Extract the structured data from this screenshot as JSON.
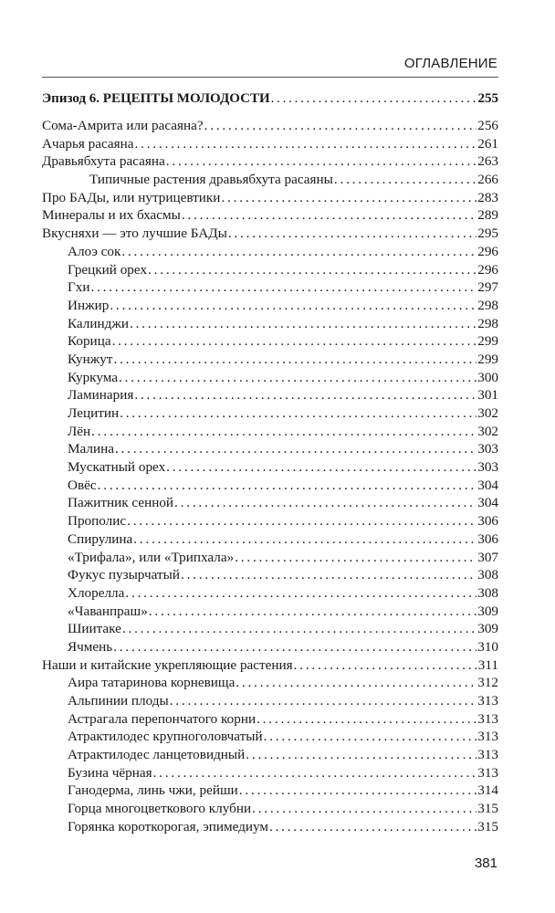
{
  "header": "ОГЛАВЛЕНИЕ",
  "folio": "381",
  "entries": [
    {
      "title": "Эпизод 6. РЕЦЕПТЫ МОЛОДОСТИ",
      "page": "255",
      "level": 0,
      "bold": true
    },
    {
      "title": "Сома-Амрита или расаяна?",
      "page": "256",
      "level": 0
    },
    {
      "title": "Ачарья расаяна",
      "page": "261",
      "level": 0
    },
    {
      "title": "Дравьябхута расаяна",
      "page": "263",
      "level": 0
    },
    {
      "title": "Типичные растения дравьябхута расаяны",
      "page": "266",
      "level": 2
    },
    {
      "title": "Про БАДы, или нутрицевтики",
      "page": "283",
      "level": 0
    },
    {
      "title": "Минералы и их бхасмы",
      "page": "289",
      "level": 0
    },
    {
      "title": "Вкусняхи — это лучшие БАДы",
      "page": "295",
      "level": 0
    },
    {
      "title": "Алоэ сок",
      "page": "296",
      "level": 1
    },
    {
      "title": "Грецкий орех",
      "page": "296",
      "level": 1
    },
    {
      "title": "Гхи",
      "page": "297",
      "level": 1
    },
    {
      "title": "Инжир",
      "page": "298",
      "level": 1
    },
    {
      "title": "Калинджи",
      "page": "298",
      "level": 1
    },
    {
      "title": "Корица",
      "page": "299",
      "level": 1
    },
    {
      "title": "Кунжут",
      "page": "299",
      "level": 1
    },
    {
      "title": "Куркума",
      "page": "300",
      "level": 1
    },
    {
      "title": "Ламинария",
      "page": "301",
      "level": 1
    },
    {
      "title": "Лецитин",
      "page": "302",
      "level": 1
    },
    {
      "title": "Лён",
      "page": "302",
      "level": 1
    },
    {
      "title": "Малина",
      "page": "303",
      "level": 1
    },
    {
      "title": "Мускатный орех",
      "page": "303",
      "level": 1
    },
    {
      "title": "Овёс",
      "page": "304",
      "level": 1
    },
    {
      "title": "Пажитник сенной",
      "page": "304",
      "level": 1
    },
    {
      "title": "Прополис",
      "page": "306",
      "level": 1
    },
    {
      "title": "Спирулина",
      "page": "306",
      "level": 1
    },
    {
      "title": "«Трифала», или «Трипхала»",
      "page": "307",
      "level": 1
    },
    {
      "title": "Фукус пузырчатый",
      "page": "308",
      "level": 1
    },
    {
      "title": "Хлорелла",
      "page": "308",
      "level": 1
    },
    {
      "title": "«Чаванпраш»",
      "page": "309",
      "level": 1
    },
    {
      "title": "Шиитаке",
      "page": "309",
      "level": 1
    },
    {
      "title": "Ячмень",
      "page": "310",
      "level": 1
    },
    {
      "title": "Наши и китайские укрепляющие растения",
      "page": "311",
      "level": 0
    },
    {
      "title": "Аира татаринова корневища",
      "page": "312",
      "level": 1
    },
    {
      "title": "Альпинии плоды",
      "page": "313",
      "level": 1
    },
    {
      "title": "Астрагала перепончатого корни",
      "page": "313",
      "level": 1
    },
    {
      "title": "Атрактилодес крупноголовчатый",
      "page": "313",
      "level": 1
    },
    {
      "title": "Атрактилодес ланцетовидный",
      "page": "313",
      "level": 1
    },
    {
      "title": "Бузина чёрная",
      "page": "313",
      "level": 1
    },
    {
      "title": "Ганодерма, линь чжи, рейши",
      "page": "314",
      "level": 1
    },
    {
      "title": "Горца многоцветкового клубни",
      "page": "315",
      "level": 1
    },
    {
      "title": "Горянка короткорогая, эпимедиум",
      "page": "315",
      "level": 1
    }
  ]
}
